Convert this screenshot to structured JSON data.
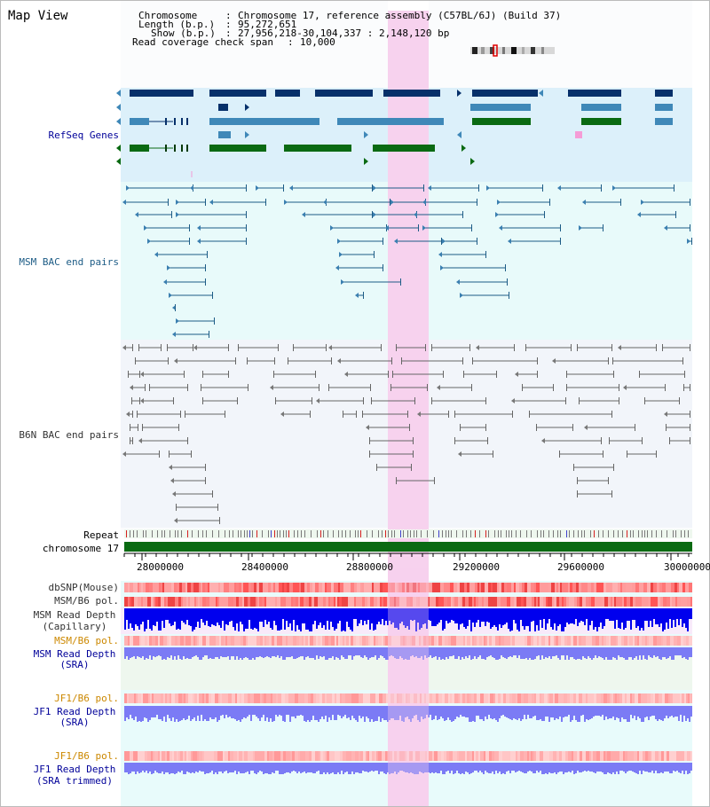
{
  "title": "Map View",
  "header": {
    "chromosome_key": "Chromosome",
    "chromosome_value": "Chromosome 17, reference assembly (C57BL/6J) (Build 37)",
    "length_key": "Length (b.p.)",
    "length_value": "95,272,651",
    "show_key": "Show (b.p.)",
    "show_value": "27,956,218-30,104,337 : 2,148,120 bp",
    "coverage_key": "Read coverage check span",
    "coverage_value": "10,000"
  },
  "tracks": {
    "refseq": "RefSeq Genes",
    "msm_bac": "MSM BAC end pairs",
    "b6n_bac": "B6N BAC end pairs",
    "repeat": "Repeat",
    "chromosome": "chromosome 17",
    "dbsnp": "dbSNP(Mouse)",
    "msm_b6_pol_1": "MSM/B6 pol.",
    "msm_read_depth_cap_1": "MSM Read Depth",
    "msm_read_depth_cap_2": "(Capillary)",
    "msm_b6_pol_2": "MSM/B6 pol.",
    "msm_read_depth_sra_1": "MSM Read Depth",
    "msm_read_depth_sra_2": "(SRA)",
    "jf1_b6_pol_1": "JF1/B6 pol.",
    "jf1_read_depth_sra_1": "JF1 Read Depth",
    "jf1_read_depth_sra_2": "(SRA)",
    "jf1_b6_pol_2": "JF1/B6 pol.",
    "jf1_read_depth_trim_1": "JF1 Read Depth",
    "jf1_read_depth_trim_2": "(SRA trimmed)"
  },
  "axis": {
    "ticks": [
      "28000000",
      "28400000",
      "28800000",
      "29200000",
      "29600000",
      "30000000"
    ]
  },
  "colors": {
    "gene_dark": "#06306a",
    "gene_mid": "#3f88b8",
    "gene_green": "#0a6a12",
    "bac_msm": "#1d5c86",
    "bac_b6n": "#666666",
    "highlight": "#f7d2ee",
    "label_blue": "#000099",
    "label_orange": "#cc8800",
    "refseq_bg": "#dcf0fa",
    "msm_bg": "#e8fafa",
    "b6n_bg": "#f2f5fa",
    "depth_cap": "#0000ee",
    "depth_sra": "#7b7bf5"
  }
}
